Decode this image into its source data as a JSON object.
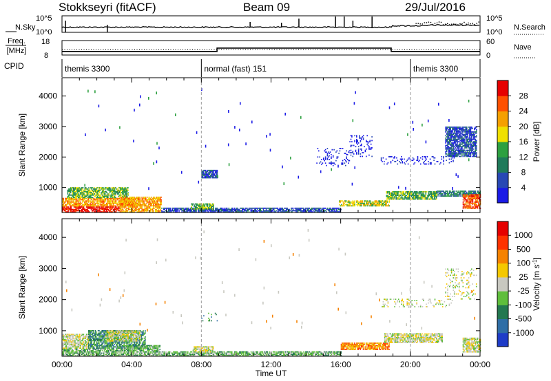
{
  "header": {
    "station": "Stokkseyri (fitACF)",
    "beam": "Beam 09",
    "date": "29/Jul/2016"
  },
  "chart_data": [
    {
      "type": "line",
      "panel": "nsky-nsearch",
      "left_label": "N.Sky",
      "right_label": "N.Search",
      "left_ticks": [
        "10^5",
        "10^0"
      ],
      "right_ticks": [
        "10^5",
        "10^0"
      ],
      "scale": "log"
    },
    {
      "type": "line",
      "panel": "freq-nave",
      "left_label": "Freq.",
      "left_unit": "[MHz]",
      "right_label": "Nave",
      "left_ticks": [
        "18",
        "8"
      ],
      "right_ticks": [
        "60",
        "0"
      ],
      "ylim_left": [
        8,
        18
      ],
      "ylim_right": [
        0,
        60
      ],
      "freq_series": [
        {
          "x": 0,
          "y": 10.5
        },
        {
          "x": 8.9,
          "y": 10.5
        },
        {
          "x": 8.9,
          "y": 12.8
        },
        {
          "x": 18.9,
          "y": 12.8
        },
        {
          "x": 18.9,
          "y": 10.5
        },
        {
          "x": 24,
          "y": 10.5
        }
      ],
      "nave_level": 23
    },
    {
      "type": "table",
      "panel": "cpid",
      "label": "CPID",
      "segments": [
        {
          "name": "themis 3300",
          "start": 0.0,
          "end": 8.0
        },
        {
          "name": "normal (fast) 151",
          "start": 8.0,
          "end": 20.0
        },
        {
          "name": "themis 3300",
          "start": 20.0,
          "end": 24.0
        }
      ]
    },
    {
      "type": "heatmap",
      "panel": "power",
      "ylabel": "Slant Range [km]",
      "y_ticks": [
        1000,
        2000,
        3000,
        4000
      ],
      "ylim": [
        180,
        4600
      ],
      "xlim": [
        0,
        24
      ],
      "colorbar": {
        "label": "Power [dB]",
        "ticks": [
          "4",
          "8",
          "12",
          "16",
          "20",
          "24",
          "28"
        ],
        "colors": [
          "#1a1ae6",
          "#2848b4",
          "#1f7a5a",
          "#2da040",
          "#f0e000",
          "#f5a000",
          "#ff5000",
          "#e60000"
        ]
      },
      "regions": [
        {
          "t0": 0.0,
          "t1": 3.3,
          "r0": 180,
          "r1": 380,
          "level": 7
        },
        {
          "t0": 0.0,
          "t1": 4.5,
          "r0": 380,
          "r1": 650,
          "level": 5
        },
        {
          "t0": 0.3,
          "t1": 3.8,
          "r0": 650,
          "r1": 980,
          "level": 3
        },
        {
          "t0": 3.3,
          "t1": 5.7,
          "r0": 180,
          "r1": 700,
          "level": 5
        },
        {
          "t0": 5.7,
          "t1": 16.0,
          "r0": 180,
          "r1": 340,
          "level": 1
        },
        {
          "t0": 7.4,
          "t1": 8.7,
          "r0": 280,
          "r1": 480,
          "level": 3
        },
        {
          "t0": 8.0,
          "t1": 8.9,
          "r0": 1300,
          "r1": 1550,
          "level": 1
        },
        {
          "t0": 15.9,
          "t1": 18.8,
          "r0": 380,
          "r1": 560,
          "level": 4
        },
        {
          "t0": 18.6,
          "t1": 21.5,
          "r0": 600,
          "r1": 880,
          "level": 3
        },
        {
          "t0": 21.5,
          "t1": 24.0,
          "r0": 700,
          "r1": 880,
          "level": 2
        },
        {
          "t0": 23.0,
          "t1": 24.0,
          "r0": 300,
          "r1": 760,
          "level": 6
        },
        {
          "t0": 14.6,
          "t1": 16.5,
          "r0": 1700,
          "r1": 2300,
          "level": 0
        },
        {
          "t0": 16.5,
          "t1": 17.8,
          "r0": 2000,
          "r1": 2700,
          "level": 0
        },
        {
          "t0": 18.3,
          "t1": 22.5,
          "r0": 1750,
          "r1": 2000,
          "level": 0
        },
        {
          "t0": 22.0,
          "t1": 23.8,
          "r0": 2000,
          "r1": 3000,
          "level": 1
        }
      ]
    },
    {
      "type": "heatmap",
      "panel": "velocity",
      "ylabel": "Slant Range [km]",
      "xlabel": "Time UT",
      "x_ticks": [
        "00:00",
        "04:00",
        "08:00",
        "12:00",
        "16:00",
        "20:00",
        "00:00"
      ],
      "y_ticks": [
        1000,
        2000,
        3000,
        4000
      ],
      "ylim": [
        180,
        4600
      ],
      "xlim": [
        0,
        24
      ],
      "colorbar": {
        "label": "Velocity [m s",
        "label_sup": "-1",
        "label_end": "]",
        "ticks": [
          "1000",
          "500",
          "100",
          "25",
          "-25",
          "-100",
          "-500",
          "-1000"
        ],
        "colors": [
          "#1e3cc8",
          "#2f6ea6",
          "#237850",
          "#5fbe3c",
          "#c8c8c0",
          "#f5c800",
          "#f58200",
          "#ff3200",
          "#e60000"
        ]
      },
      "regions": [
        {
          "t0": 0.0,
          "t1": 3.5,
          "r0": 180,
          "r1": 420,
          "level": 3
        },
        {
          "t0": 0.0,
          "t1": 1.5,
          "r0": 420,
          "r1": 900,
          "level": 4
        },
        {
          "t0": 1.5,
          "t1": 4.8,
          "r0": 420,
          "r1": 1000,
          "level": 2
        },
        {
          "t0": 2.5,
          "t1": 4.5,
          "r0": 650,
          "r1": 1000,
          "level": 4
        },
        {
          "t0": 3.5,
          "t1": 5.6,
          "r0": 180,
          "r1": 520,
          "level": 3
        },
        {
          "t0": 5.6,
          "t1": 16.0,
          "r0": 180,
          "r1": 330,
          "level": 3
        },
        {
          "t0": 7.5,
          "t1": 8.7,
          "r0": 300,
          "r1": 480,
          "level": 4
        },
        {
          "t0": 8.0,
          "t1": 8.9,
          "r0": 1300,
          "r1": 1550,
          "level": 2
        },
        {
          "t0": 16.0,
          "t1": 18.8,
          "r0": 380,
          "r1": 600,
          "level": 6
        },
        {
          "t0": 18.5,
          "t1": 21.8,
          "r0": 600,
          "r1": 900,
          "level": 4
        },
        {
          "t0": 23.0,
          "t1": 24.0,
          "r0": 300,
          "r1": 760,
          "level": 4
        },
        {
          "t0": 18.3,
          "t1": 22.4,
          "r0": 1750,
          "r1": 2000,
          "level": 4
        },
        {
          "t0": 22.0,
          "t1": 23.8,
          "r0": 2000,
          "r1": 3000,
          "level": 4
        }
      ]
    }
  ]
}
